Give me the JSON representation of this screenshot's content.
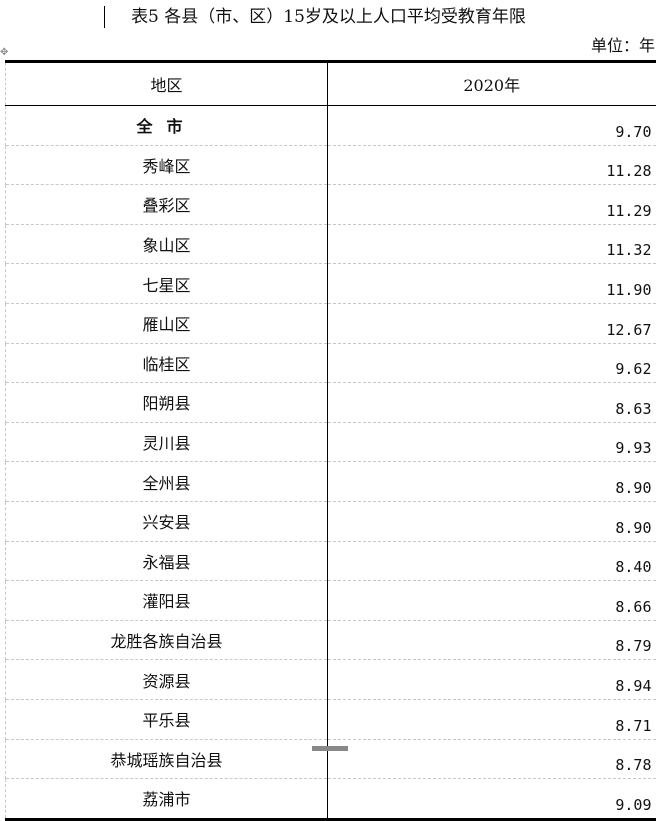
{
  "title": "表5 各县（市、区）15岁及以上人口平均受教育年限",
  "unit": "单位：年",
  "table": {
    "headers": [
      "地区",
      "2020年"
    ],
    "rows": [
      {
        "region": "全市",
        "value": "9.70"
      },
      {
        "region": "秀峰区",
        "value": "11.28"
      },
      {
        "region": "叠彩区",
        "value": "11.29"
      },
      {
        "region": "象山区",
        "value": "11.32"
      },
      {
        "region": "七星区",
        "value": "11.90"
      },
      {
        "region": "雁山区",
        "value": "12.67"
      },
      {
        "region": "临桂区",
        "value": "9.62"
      },
      {
        "region": "阳朔县",
        "value": "8.63"
      },
      {
        "region": "灵川县",
        "value": "9.93"
      },
      {
        "region": "全州县",
        "value": "8.90"
      },
      {
        "region": "兴安县",
        "value": "8.90"
      },
      {
        "region": "永福县",
        "value": "8.40"
      },
      {
        "region": "灌阳县",
        "value": "8.66"
      },
      {
        "region": "龙胜各族自治县",
        "value": "8.79"
      },
      {
        "region": "资源县",
        "value": "8.94"
      },
      {
        "region": "平乐县",
        "value": "8.71"
      },
      {
        "region": "恭城瑶族自治县",
        "value": "8.78"
      },
      {
        "region": "荔浦市",
        "value": "9.09"
      }
    ]
  }
}
